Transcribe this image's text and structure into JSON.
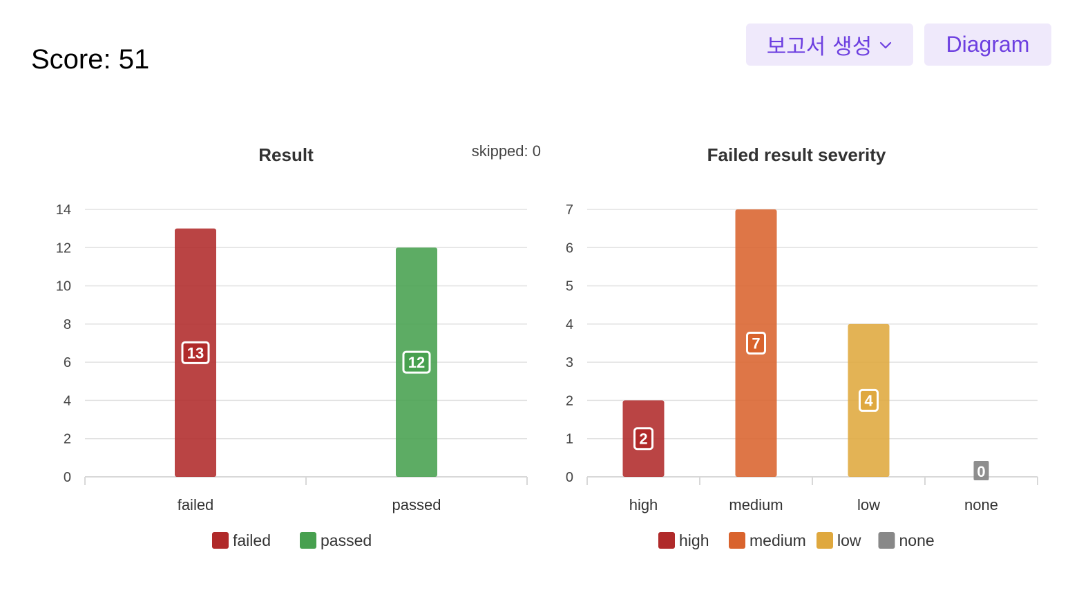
{
  "header": {
    "score_label": "Score:",
    "score_value": "51",
    "report_button_label": "보고서 생성",
    "diagram_button_label": "Diagram"
  },
  "colors": {
    "accent": "#6d3fe0",
    "button_bg": "#efe9fb",
    "failed": "#b02a2a",
    "passed": "#47a04f",
    "high": "#b02a2a",
    "medium": "#d9632d",
    "low": "#dfa83e",
    "none": "#888888"
  },
  "chart_data": [
    {
      "type": "bar",
      "title": "Result",
      "annotation": "skipped: 0",
      "categories": [
        "failed",
        "passed"
      ],
      "values": [
        13,
        12
      ],
      "colors": [
        "#b02a2a",
        "#47a04f"
      ],
      "legend": [
        "failed",
        "passed"
      ],
      "ylim": [
        0,
        14
      ],
      "yticks": [
        0,
        2,
        4,
        6,
        8,
        10,
        12,
        14
      ],
      "grid": true,
      "legend_position": "bottom"
    },
    {
      "type": "bar",
      "title": "Failed result severity",
      "categories": [
        "high",
        "medium",
        "low",
        "none"
      ],
      "values": [
        2,
        7,
        4,
        0
      ],
      "colors": [
        "#b02a2a",
        "#d9632d",
        "#dfa83e",
        "#888888"
      ],
      "legend": [
        "high",
        "medium",
        "low",
        "none"
      ],
      "ylim": [
        0,
        7
      ],
      "yticks": [
        0,
        1,
        2,
        3,
        4,
        5,
        6,
        7
      ],
      "grid": true,
      "legend_position": "bottom"
    }
  ]
}
